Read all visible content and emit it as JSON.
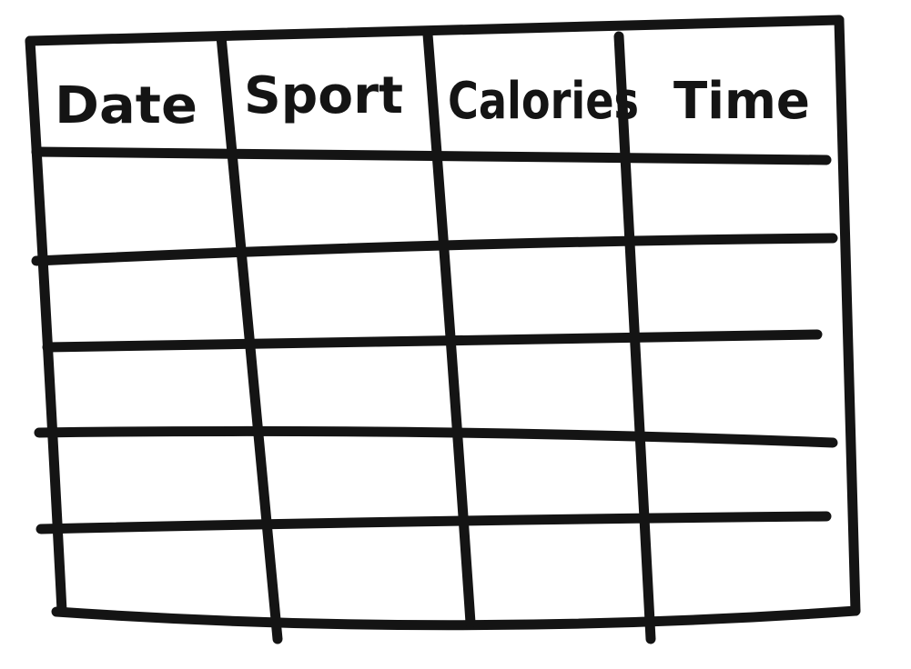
{
  "table": {
    "headers": [
      "Date",
      "Sport",
      "Calories",
      "Time"
    ],
    "body_rows": [
      [
        "",
        "",
        "",
        ""
      ],
      [
        "",
        "",
        "",
        ""
      ],
      [
        "",
        "",
        "",
        ""
      ],
      [
        "",
        "",
        "",
        ""
      ],
      [
        "",
        "",
        "",
        ""
      ]
    ]
  },
  "colors": {
    "ink": "#141414",
    "paper": "#ffffff"
  }
}
